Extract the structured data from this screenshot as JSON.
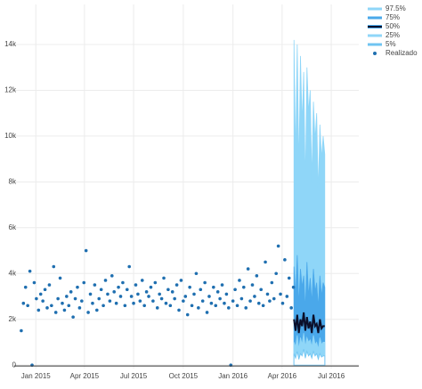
{
  "chart_data": {
    "type": "forecast-scatter",
    "xlim": [
      -40,
      598
    ],
    "ylim": [
      -150,
      15750
    ],
    "xticks": [
      {
        "value": 0,
        "label": "Jan 2015"
      },
      {
        "value": 90,
        "label": "Apr 2015"
      },
      {
        "value": 181,
        "label": "Jul 2015"
      },
      {
        "value": 273,
        "label": "Oct 2015"
      },
      {
        "value": 365,
        "label": "Jan 2016"
      },
      {
        "value": 456,
        "label": "Apr 2016"
      },
      {
        "value": 547,
        "label": "Jul 2016"
      }
    ],
    "yticks": [
      0,
      {
        "value": 2000,
        "label": "2k"
      },
      {
        "value": 4000,
        "label": "4k"
      },
      {
        "value": 6000,
        "label": "6k"
      },
      {
        "value": 8000,
        "label": "8k"
      },
      {
        "value": 10000,
        "label": "10k"
      },
      {
        "value": 12000,
        "label": "12k"
      },
      {
        "value": 14000,
        "label": "14k"
      }
    ],
    "grid": true,
    "forecast": {
      "x": [
        478,
        481,
        484,
        487,
        490,
        493,
        496,
        499,
        502,
        505,
        508,
        511,
        514,
        517,
        520,
        523,
        526,
        529,
        532,
        535
      ],
      "series": [
        {
          "name": "97.5%",
          "color": "#8fd6f8",
          "values": [
            14200,
            9000,
            14000,
            8500,
            13500,
            10500,
            12800,
            7800,
            13000,
            11000,
            12000,
            8000,
            11500,
            9800,
            11000,
            7500,
            10500,
            9000,
            10000,
            9200
          ]
        },
        {
          "name": "75%",
          "color": "#4aa8ea",
          "values": [
            4300,
            3000,
            4800,
            2600,
            4200,
            3400,
            3900,
            2400,
            4500,
            3000,
            3800,
            2700,
            4200,
            3200,
            3600,
            2500,
            3900,
            3000,
            3600,
            3400
          ]
        },
        {
          "name": "50%",
          "color": "#0b0f2a",
          "values": [
            2000,
            1500,
            2200,
            1400,
            2000,
            1700,
            2300,
            1500,
            2100,
            1600,
            1900,
            1400,
            2200,
            1700,
            1800,
            1400,
            2000,
            1600,
            1700,
            1700
          ]
        },
        {
          "name": "25%",
          "color": "#8fd6f8",
          "values": [
            1000,
            800,
            1300,
            700,
            1200,
            900,
            1400,
            800,
            1200,
            1000,
            1100,
            800,
            1300,
            900,
            1000,
            700,
            1200,
            900,
            1000,
            1000
          ]
        },
        {
          "name": "5%",
          "color": "#6fc4f2",
          "values": [
            500,
            300,
            600,
            250,
            500,
            400,
            700,
            300,
            600,
            400,
            500,
            300,
            600,
            400,
            500,
            250,
            500,
            350,
            400,
            400
          ]
        }
      ]
    },
    "points": {
      "name": "Realizado",
      "color": "#1f6fb0",
      "x": [
        -27,
        -23,
        -19,
        -15,
        -11,
        -7,
        -3,
        1,
        5,
        9,
        13,
        17,
        21,
        25,
        29,
        33,
        37,
        41,
        45,
        49,
        53,
        57,
        61,
        65,
        69,
        73,
        77,
        81,
        85,
        89,
        93,
        97,
        101,
        105,
        109,
        113,
        117,
        121,
        125,
        129,
        133,
        137,
        141,
        145,
        149,
        153,
        157,
        161,
        165,
        169,
        173,
        177,
        181,
        185,
        189,
        193,
        197,
        201,
        205,
        209,
        213,
        217,
        221,
        225,
        229,
        233,
        237,
        241,
        245,
        249,
        253,
        257,
        261,
        265,
        269,
        273,
        277,
        281,
        285,
        289,
        293,
        297,
        301,
        305,
        309,
        313,
        317,
        321,
        325,
        329,
        333,
        337,
        341,
        345,
        349,
        353,
        357,
        361,
        365,
        369,
        373,
        377,
        381,
        385,
        389,
        393,
        397,
        401,
        405,
        409,
        413,
        417,
        421,
        425,
        429,
        433,
        437,
        441,
        445,
        449,
        453,
        457,
        461,
        465,
        469,
        473,
        477
      ],
      "values": [
        1500,
        2700,
        3400,
        2600,
        4100,
        0,
        3600,
        2900,
        2400,
        3100,
        2800,
        3300,
        2500,
        3500,
        2600,
        4300,
        2300,
        2900,
        3800,
        2700,
        2400,
        3000,
        2600,
        3200,
        2100,
        2900,
        3400,
        2500,
        2800,
        3600,
        5000,
        2300,
        3100,
        2700,
        3500,
        2400,
        2900,
        3300,
        2600,
        3700,
        3100,
        2800,
        3900,
        3200,
        2700,
        3400,
        3000,
        3600,
        2600,
        3300,
        4300,
        3000,
        2700,
        3500,
        3100,
        2800,
        3700,
        2600,
        3200,
        3000,
        3400,
        2800,
        3600,
        2500,
        3100,
        2900,
        3800,
        2700,
        3300,
        2600,
        3200,
        2900,
        3500,
        2400,
        3700,
        2800,
        3000,
        2200,
        3400,
        2600,
        3100,
        4000,
        2500,
        3300,
        2800,
        3600,
        2300,
        3000,
        2700,
        3400,
        2600,
        3200,
        2900,
        3500,
        2700,
        3100,
        2500,
        0,
        2800,
        3300,
        2600,
        3700,
        2900,
        3400,
        2500,
        4200,
        2800,
        3500,
        3000,
        3900,
        2700,
        3300,
        2600,
        4500,
        3100,
        2800,
        3600,
        2900,
        4000,
        5200,
        3100,
        2700,
        4600,
        3000,
        3800,
        2500,
        3400
      ]
    }
  }
}
